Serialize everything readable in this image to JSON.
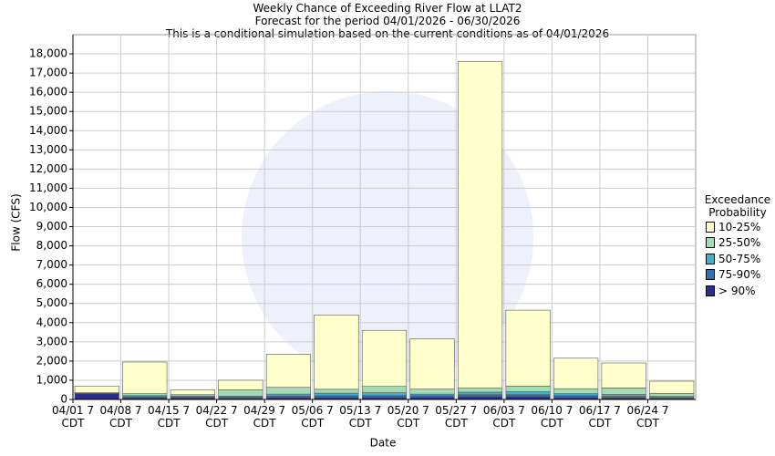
{
  "chart_data": {
    "type": "stacked-bar",
    "title": "Weekly Chance of Exceeding River Flow at LLAT2",
    "subtitle": "Forecast for the period 04/01/2026 - 06/30/2026",
    "subtitle2": "This is a conditional simulation based on the current conditions as of 04/01/2026",
    "y_label": "Flow (CFS)",
    "x_label": "Date",
    "legend_title": "Exceedance Probability",
    "categories": [
      "04/01 7 CDT",
      "04/08 7 CDT",
      "04/15 7 CDT",
      "04/22 7 CDT",
      "04/29 7 CDT",
      "05/06 7 CDT",
      "05/13 7 CDT",
      "05/20 7 CDT",
      "05/27 7 CDT",
      "06/03 7 CDT",
      "06/10 7 CDT",
      "06/17 7 CDT",
      "06/24 7 CDT"
    ],
    "series": [
      {
        "name": "> 90%",
        "color": "#2b2d8c",
        "values": [
          300,
          80,
          80,
          60,
          100,
          100,
          100,
          120,
          150,
          150,
          100,
          80,
          50
        ]
      },
      {
        "name": "75-90%",
        "color": "#2f6fb3",
        "values": [
          20,
          60,
          50,
          60,
          80,
          100,
          100,
          80,
          100,
          100,
          100,
          80,
          50
        ]
      },
      {
        "name": "50-75%",
        "color": "#41b0c9",
        "values": [
          10,
          60,
          50,
          50,
          100,
          130,
          150,
          80,
          130,
          150,
          100,
          100,
          60
        ]
      },
      {
        "name": "25-50%",
        "color": "#a2dbb4",
        "values": [
          20,
          100,
          70,
          330,
          350,
          200,
          330,
          260,
          210,
          300,
          260,
          340,
          160
        ]
      },
      {
        "name": "10-25%",
        "color": "#ffffcc",
        "values": [
          350,
          1650,
          250,
          500,
          1720,
          3870,
          2920,
          2610,
          17010,
          3950,
          1590,
          1300,
          630
        ]
      }
    ],
    "ylim": [
      0,
      19000
    ],
    "yticks": [
      0,
      {
        "value": 1000,
        "label": "1,000"
      },
      {
        "value": 2000,
        "label": "2,000"
      },
      {
        "value": 3000,
        "label": "3,000"
      },
      {
        "value": 4000,
        "label": "4,000"
      },
      {
        "value": 5000,
        "label": "5,000"
      },
      {
        "value": 6000,
        "label": "6,000"
      },
      {
        "value": 7000,
        "label": "7,000"
      },
      {
        "value": 8000,
        "label": "8,000"
      },
      {
        "value": 9000,
        "label": "9,000"
      },
      {
        "value": 10000,
        "label": "10,000"
      },
      {
        "value": 11000,
        "label": "11,000"
      },
      {
        "value": 12000,
        "label": "12,000"
      },
      {
        "value": 13000,
        "label": "13,000"
      },
      {
        "value": 14000,
        "label": "14,000"
      },
      {
        "value": 15000,
        "label": "15,000"
      },
      {
        "value": 16000,
        "label": "16,000"
      },
      {
        "value": 17000,
        "label": "17,000"
      },
      {
        "value": 18000,
        "label": "18,000"
      }
    ],
    "grid": true
  }
}
